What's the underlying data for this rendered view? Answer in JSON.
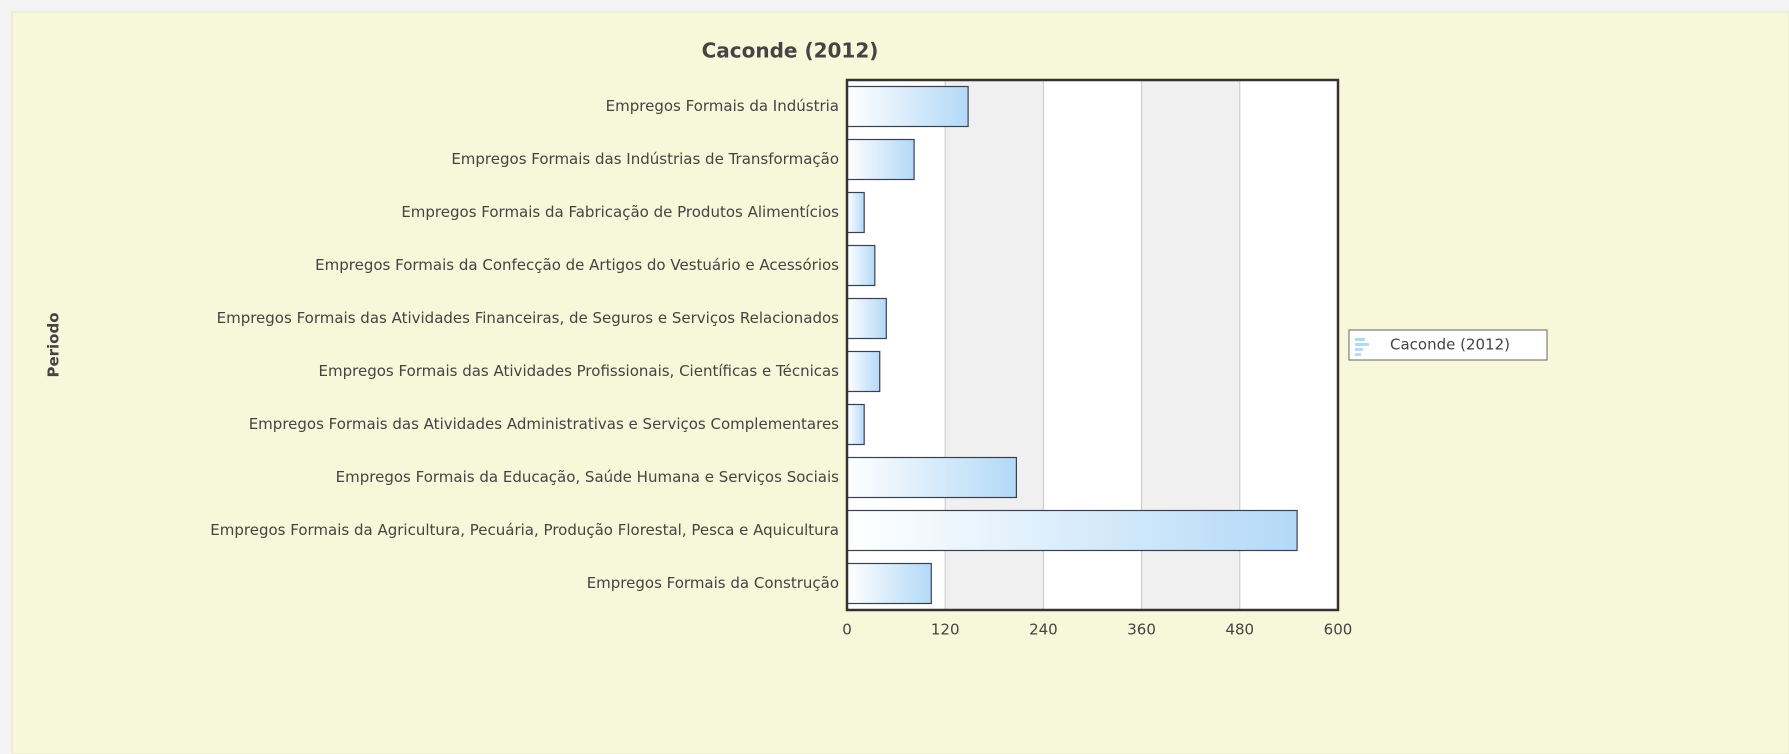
{
  "chart_data": {
    "type": "bar",
    "orientation": "horizontal",
    "title": "Caconde (2012)",
    "y_label": "Periodo",
    "categories": [
      "Empregos Formais da Indústria",
      "Empregos Formais das Indústrias de Transformação",
      "Empregos Formais da Fabricação de Produtos Alimentícios",
      "Empregos Formais da Confecção de Artigos do Vestuário e Acessórios",
      "Empregos Formais das Atividades Financeiras, de Seguros e Serviços Relacionados",
      "Empregos Formais das Atividades Profissionais, Científicas e Técnicas",
      "Empregos Formais das Atividades Administrativas e Serviços Complementares",
      "Empregos Formais da Educação, Saúde Humana e Serviços Sociais",
      "Empregos Formais da Agricultura, Pecuária, Produção Florestal, Pesca e Aquicultura",
      "Empregos Formais da Construção"
    ],
    "series": [
      {
        "name": "Caconde (2012)",
        "color": "#b3d9f7",
        "values": [
          148,
          82,
          21,
          34,
          48,
          40,
          21,
          207,
          550,
          103
        ]
      }
    ],
    "xlim": [
      0,
      600
    ],
    "xticks": [
      0,
      120,
      240,
      360,
      480,
      600
    ],
    "grid": true,
    "legend": "right"
  }
}
